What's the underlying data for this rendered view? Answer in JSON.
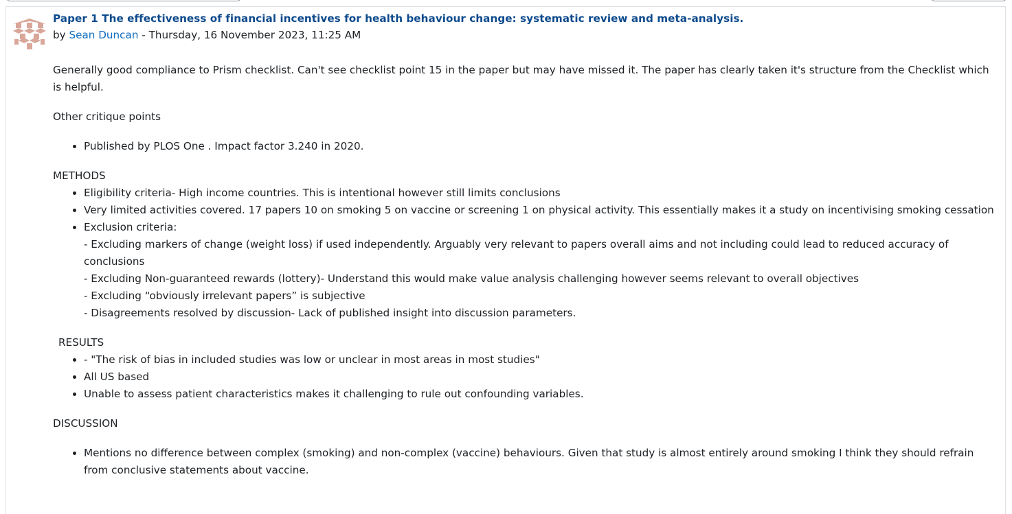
{
  "post": {
    "title": "Paper 1 The effectiveness of financial incentives for health behaviour change: systematic review and meta-analysis.",
    "by_prefix": "by ",
    "author": "Sean Duncan",
    "date_sep": " - Thursday, 16 November 2023, 11:25 AM",
    "avatar_icon": "user-avatar-icon",
    "colors": {
      "title": "#0d4a8c",
      "link": "#0f6cbf",
      "avatar": "#d9a79a"
    }
  },
  "content": {
    "intro": "Generally good compliance to Prism checklist. Can't see checklist point 15 in the paper but may have missed it. The paper has clearly taken it's structure from the Checklist which is helpful.",
    "other_heading": "Other critique points",
    "other_items": [
      "Published by PLOS One . Impact factor 3.240 in 2020."
    ],
    "methods_heading": "METHODS",
    "methods_items": [
      "Eligibility criteria- High income countries. This is intentional however still limits conclusions",
      "Very limited activities covered. 17 papers 10 on smoking 5 on vaccine or screening 1 on physical activity. This essentially makes it a study on incentivising smoking cessation",
      "Exclusion criteria:"
    ],
    "exclusion_lines": [
      "- Excluding markers of change (weight loss) if used independently. Arguably very relevant to papers overall aims and not including could lead to reduced accuracy of conclusions",
      "- Excluding Non-guaranteed rewards (lottery)- Understand this would make value analysis challenging however seems relevant to overall objectives",
      "- Excluding “obviously irrelevant papers” is subjective",
      "- Disagreements resolved by discussion- Lack of published insight into discussion parameters."
    ],
    "results_heading": "RESULTS",
    "results_items": [
      "- \"The risk of bias in included studies was low or unclear in most areas in most studies\"",
      "All US based",
      "Unable to assess patient characteristics makes it challenging to rule out confounding variables."
    ],
    "discussion_heading": "DISCUSSION",
    "discussion_items": [
      "Mentions no difference between complex (smoking) and non-complex (vaccine) behaviours. Given that study is almost entirely around smoking I think they should refrain from conclusive statements about vaccine."
    ]
  }
}
